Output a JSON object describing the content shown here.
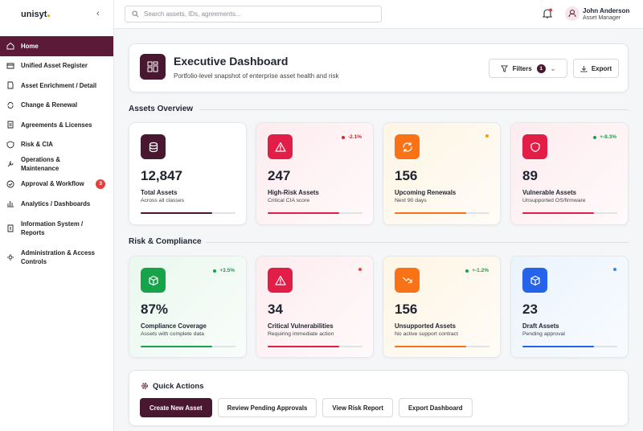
{
  "brand": "unisyt",
  "nav": {
    "items": [
      {
        "label": "Home"
      },
      {
        "label": "Unified Asset Register"
      },
      {
        "label": "Asset Enrichment / Detail"
      },
      {
        "label": "Change & Renewal"
      },
      {
        "label": "Agreements & Licenses"
      },
      {
        "label": "Risk & CIA"
      },
      {
        "label": "Operations & Maintenance"
      },
      {
        "label": "Approval & Workflow",
        "badge": "3"
      },
      {
        "label": "Analytics / Dashboards"
      },
      {
        "label": "Information System / Reports"
      },
      {
        "label": "Administration & Access Controls"
      }
    ]
  },
  "search": {
    "placeholder": "Search assets, IDs, agreements..."
  },
  "user": {
    "name": "John Anderson",
    "role": "Asset Manager"
  },
  "header": {
    "title": "Executive Dashboard",
    "subtitle": "Portfolio-level snapshot of enterprise asset health and risk",
    "filters": "Filters",
    "filter_count": "1",
    "export": "Export"
  },
  "sections": [
    {
      "title": "Assets Overview",
      "cards": [
        {
          "value": "12,847",
          "label": "Total Assets",
          "sub": "Across all classes",
          "progress": 75,
          "color": "#4a1730",
          "tint": "#ffffff"
        },
        {
          "value": "247",
          "label": "High-Risk Assets",
          "sub": "Critical CIA score",
          "trend": "-2.1%",
          "trend_color": "#dc2626",
          "progress": 75,
          "color": "#e11d48",
          "tint": "#fdecef"
        },
        {
          "value": "156",
          "label": "Upcoming Renewals",
          "sub": "Next 90 days",
          "progress": 75,
          "color": "#f97316",
          "tint": "#fef5e4",
          "dot": "#f59e0b"
        },
        {
          "value": "89",
          "label": "Vulnerable Assets",
          "sub": "Unsupported OS/firmware",
          "trend": "+-8.3%",
          "trend_color": "#16a34a",
          "progress": 75,
          "color": "#e11d48",
          "tint": "#fdecef"
        }
      ]
    },
    {
      "title": "Risk & Compliance",
      "cards": [
        {
          "value": "87%",
          "label": "Compliance Coverage",
          "sub": "Assets with complete data",
          "trend": "+3.5%",
          "trend_color": "#16a34a",
          "progress": 75,
          "color": "#16a34a",
          "tint": "#e9f8ee"
        },
        {
          "value": "34",
          "label": "Critical Vulnerabilities",
          "sub": "Requiring immediate action",
          "progress": 75,
          "color": "#e11d48",
          "tint": "#fdecef",
          "dot": "#ef4444"
        },
        {
          "value": "156",
          "label": "Unsupported Assets",
          "sub": "No active support contract",
          "trend": "+-1.2%",
          "trend_color": "#16a34a",
          "progress": 75,
          "color": "#f97316",
          "tint": "#fef5e4"
        },
        {
          "value": "23",
          "label": "Draft Assets",
          "sub": "Pending approval",
          "progress": 75,
          "color": "#2563eb",
          "tint": "#eaf3fd",
          "dot": "#3b82f6"
        }
      ]
    }
  ],
  "quick_actions": {
    "title": "Quick Actions",
    "buttons": [
      "Create New Asset",
      "Review Pending Approvals",
      "View Risk Report",
      "Export Dashboard"
    ]
  }
}
